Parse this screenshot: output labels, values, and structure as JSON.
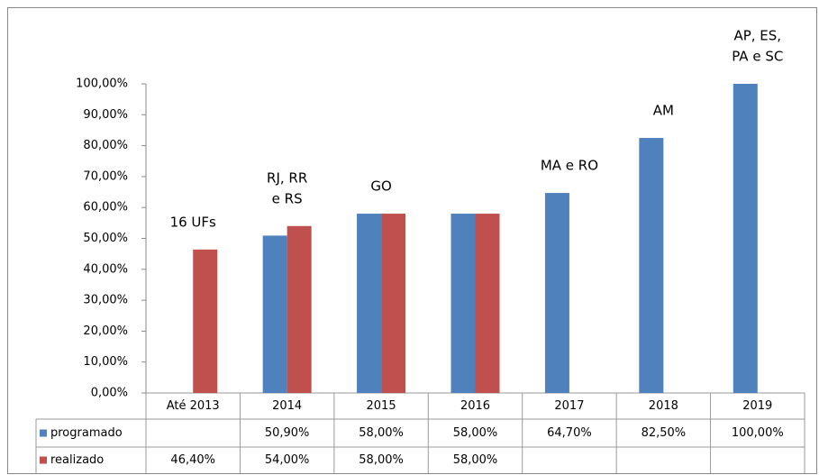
{
  "chart_data": {
    "type": "bar",
    "categories": [
      "Até 2013",
      "2014",
      "2015",
      "2016",
      "2017",
      "2018",
      "2019"
    ],
    "series": [
      {
        "name": "programado",
        "color": "#4f81bd",
        "values": [
          null,
          50.9,
          58,
          58,
          64.7,
          82.5,
          100
        ],
        "value_labels": [
          null,
          "50,90%",
          "58,00%",
          "58,00%",
          "64,70%",
          "82,50%",
          "100,00%"
        ]
      },
      {
        "name": "realizado",
        "color": "#c0504d",
        "values": [
          46.4,
          54,
          58,
          58,
          null,
          null,
          null
        ],
        "value_labels": [
          "46,40%",
          "54,00%",
          "58,00%",
          "58,00%",
          null,
          null,
          null
        ]
      }
    ],
    "annotations": [
      [
        "16 UFs"
      ],
      [
        "RJ, RR",
        "e RS"
      ],
      [
        "GO"
      ],
      null,
      [
        "MA e RO"
      ],
      [
        "AM"
      ],
      [
        "AP, ES,",
        "PA e SC"
      ]
    ],
    "ylim": [
      0,
      100
    ],
    "yticks": [
      {
        "value": 0,
        "label": "0,00%"
      },
      {
        "value": 10,
        "label": "10,00%"
      },
      {
        "value": 20,
        "label": "20,00%"
      },
      {
        "value": 30,
        "label": "30,00%"
      },
      {
        "value": 40,
        "label": "40,00%"
      },
      {
        "value": 50,
        "label": "50,00%"
      },
      {
        "value": 60,
        "label": "60,00%"
      },
      {
        "value": 70,
        "label": "70,00%"
      },
      {
        "value": 80,
        "label": "80,00%"
      },
      {
        "value": 90,
        "label": "90,00%"
      },
      {
        "value": 100,
        "label": "100,00%"
      }
    ],
    "grid": false
  }
}
